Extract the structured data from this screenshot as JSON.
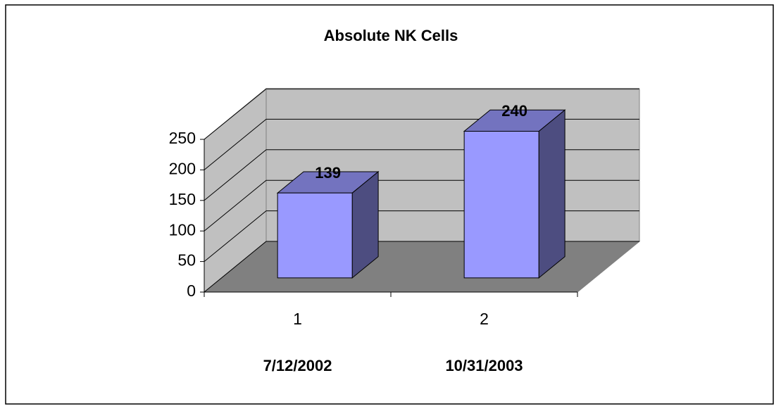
{
  "chart_data": {
    "type": "bar3d",
    "title": "Absolute NK Cells",
    "categories": [
      "1",
      "2"
    ],
    "dates": [
      "7/12/2002",
      "10/31/2003"
    ],
    "values": [
      139,
      240
    ],
    "color": "#9999ff",
    "ylim": [
      0,
      250
    ],
    "yticks": [
      0,
      50,
      100,
      150,
      200,
      250
    ],
    "grid": true
  }
}
